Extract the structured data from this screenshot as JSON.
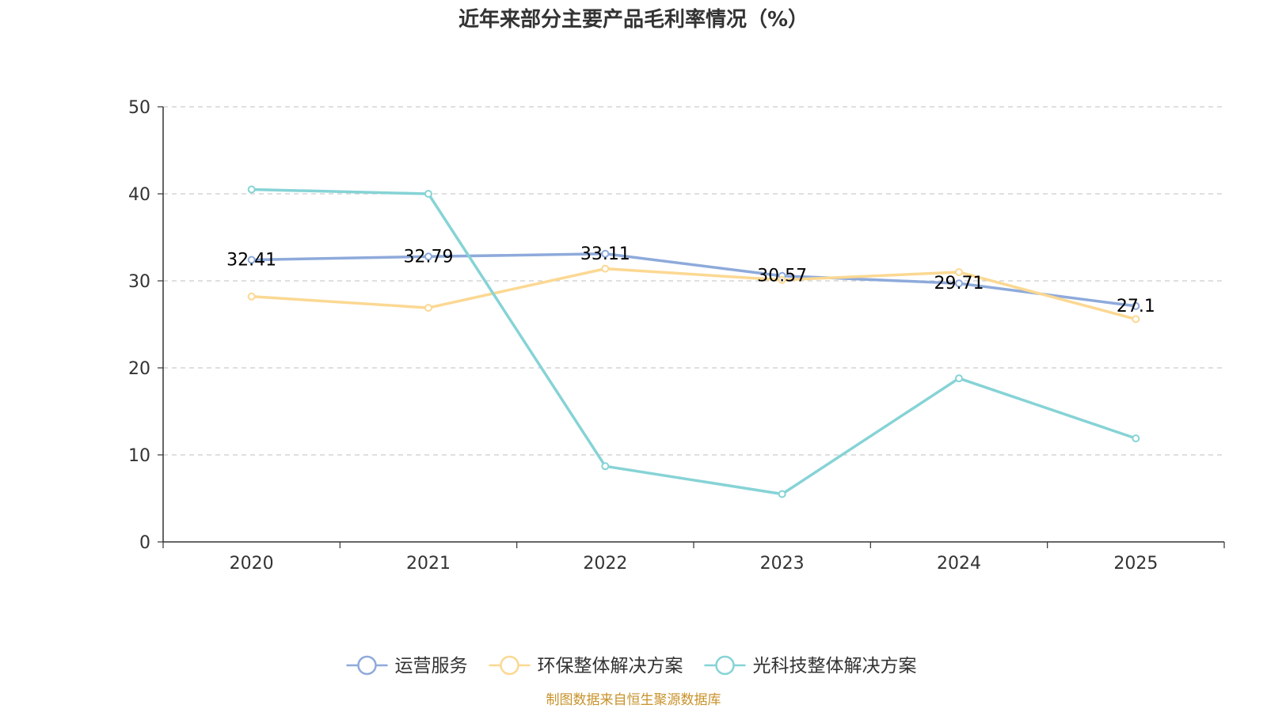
{
  "chart_data": {
    "type": "line",
    "title": "近年来部分主要产品毛利率情况（%）",
    "categories": [
      "2020",
      "2021",
      "2022",
      "2023",
      "2024",
      "2025"
    ],
    "ylim": [
      0,
      50
    ],
    "yticks": [
      0,
      10,
      20,
      30,
      40,
      50
    ],
    "grid": true,
    "legend_position": "bottom-center",
    "series": [
      {
        "name": "运营服务",
        "color": "#8eaadb",
        "values": [
          32.41,
          32.79,
          33.11,
          30.57,
          29.71,
          27.1
        ],
        "labels": [
          "32.41",
          "32.79",
          "33.11",
          "30.57",
          "29.71",
          "27.1"
        ]
      },
      {
        "name": "环保整体解决方案",
        "color": "#fbd892",
        "values": [
          28.2,
          26.9,
          31.4,
          30.1,
          31.0,
          25.6
        ]
      },
      {
        "name": "光科技整体解决方案",
        "color": "#86d3d6",
        "values": [
          40.5,
          40.0,
          8.7,
          5.5,
          18.8,
          11.9
        ]
      }
    ],
    "source": "制图数据来自恒生聚源数据库"
  }
}
